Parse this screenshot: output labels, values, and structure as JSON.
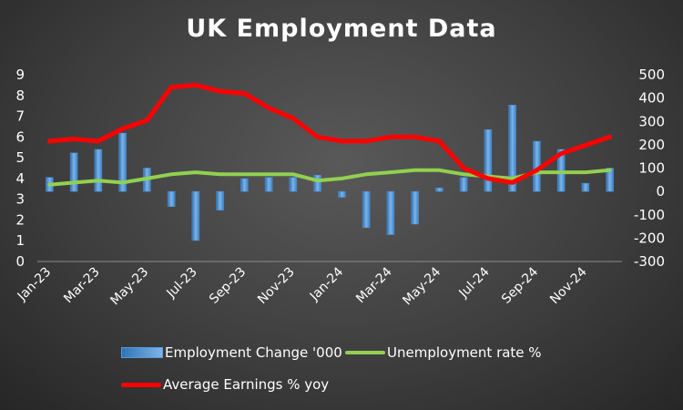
{
  "chart_data": {
    "type": "bar+line",
    "title": "UK Employment Data",
    "categories": [
      "Jan-23",
      "Feb-23",
      "Mar-23",
      "Apr-23",
      "May-23",
      "Jun-23",
      "Jul-23",
      "Aug-23",
      "Sep-23",
      "Oct-23",
      "Nov-23",
      "Dec-23",
      "Jan-24",
      "Feb-24",
      "Mar-24",
      "Apr-24",
      "May-24",
      "Jun-24",
      "Jul-24",
      "Aug-24",
      "Sep-24",
      "Oct-24",
      "Nov-24",
      "Dec-24"
    ],
    "x_tick_labels": [
      "Jan-23",
      "Mar-23",
      "May-23",
      "Jul-23",
      "Sep-23",
      "Nov-23",
      "Jan-24",
      "Mar-24",
      "May-24",
      "Jul-24",
      "Sep-24",
      "Nov-24"
    ],
    "left_axis": {
      "ylim": [
        0,
        9
      ],
      "ticks": [
        "0",
        "1",
        "2",
        "3",
        "4",
        "5",
        "6",
        "7",
        "8",
        "9"
      ]
    },
    "right_axis": {
      "ylim": [
        -300,
        500
      ],
      "ticks": [
        "-300",
        "-200",
        "-100",
        "0",
        "100",
        "200",
        "300",
        "400",
        "500"
      ]
    },
    "series": [
      {
        "name": "Employment Change '000",
        "type": "bar",
        "axis": "right",
        "color": "#5b9bd5",
        "values": [
          60,
          165,
          180,
          250,
          100,
          -65,
          -210,
          -80,
          55,
          60,
          60,
          70,
          -25,
          -155,
          -185,
          -140,
          15,
          60,
          265,
          370,
          215,
          180,
          35,
          100
        ]
      },
      {
        "name": "Unemployment rate %",
        "type": "line",
        "axis": "left",
        "color": "#92d050",
        "values": [
          3.7,
          3.8,
          3.9,
          3.8,
          4.0,
          4.2,
          4.3,
          4.2,
          4.2,
          4.2,
          4.2,
          3.9,
          4.0,
          4.2,
          4.3,
          4.4,
          4.4,
          4.2,
          4.1,
          4.0,
          4.3,
          4.3,
          4.3,
          4.4
        ]
      },
      {
        "name": "Average Earnings % yoy",
        "type": "line",
        "axis": "left",
        "color": "#ff0000",
        "values": [
          5.8,
          5.9,
          5.8,
          6.4,
          6.8,
          8.4,
          8.5,
          8.2,
          8.1,
          7.4,
          6.9,
          6.0,
          5.8,
          5.8,
          6.0,
          6.0,
          5.8,
          4.5,
          4.0,
          3.8,
          4.4,
          5.2,
          5.6,
          6.0
        ]
      }
    ],
    "legend": [
      "Employment Change '000",
      "Unemployment rate %",
      "Average Earnings % yoy"
    ],
    "legend_position": "bottom",
    "grid": false
  }
}
